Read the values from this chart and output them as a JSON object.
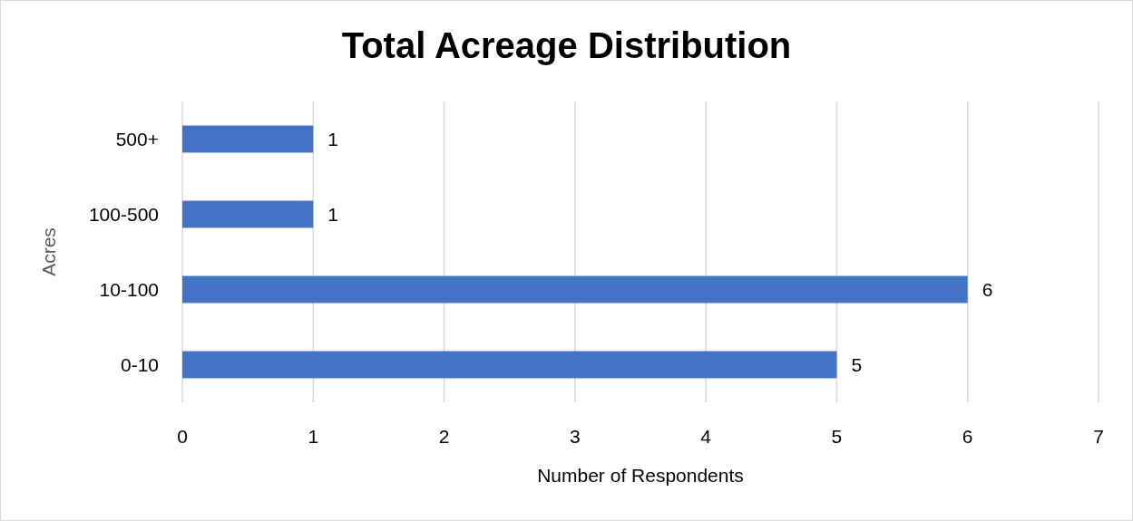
{
  "chart_data": {
    "type": "bar",
    "orientation": "horizontal",
    "title": "Total Acreage Distribution",
    "xlabel": "Number of Respondents",
    "ylabel": "Acres",
    "categories": [
      "500+",
      "100-500",
      "10-100",
      "0-10"
    ],
    "values": [
      1,
      1,
      6,
      5
    ],
    "color": "#4472c4",
    "xlim": [
      0,
      7
    ],
    "xticks": [
      0,
      1,
      2,
      3,
      4,
      5,
      6,
      7
    ],
    "grid": "x",
    "data_labels": true
  }
}
